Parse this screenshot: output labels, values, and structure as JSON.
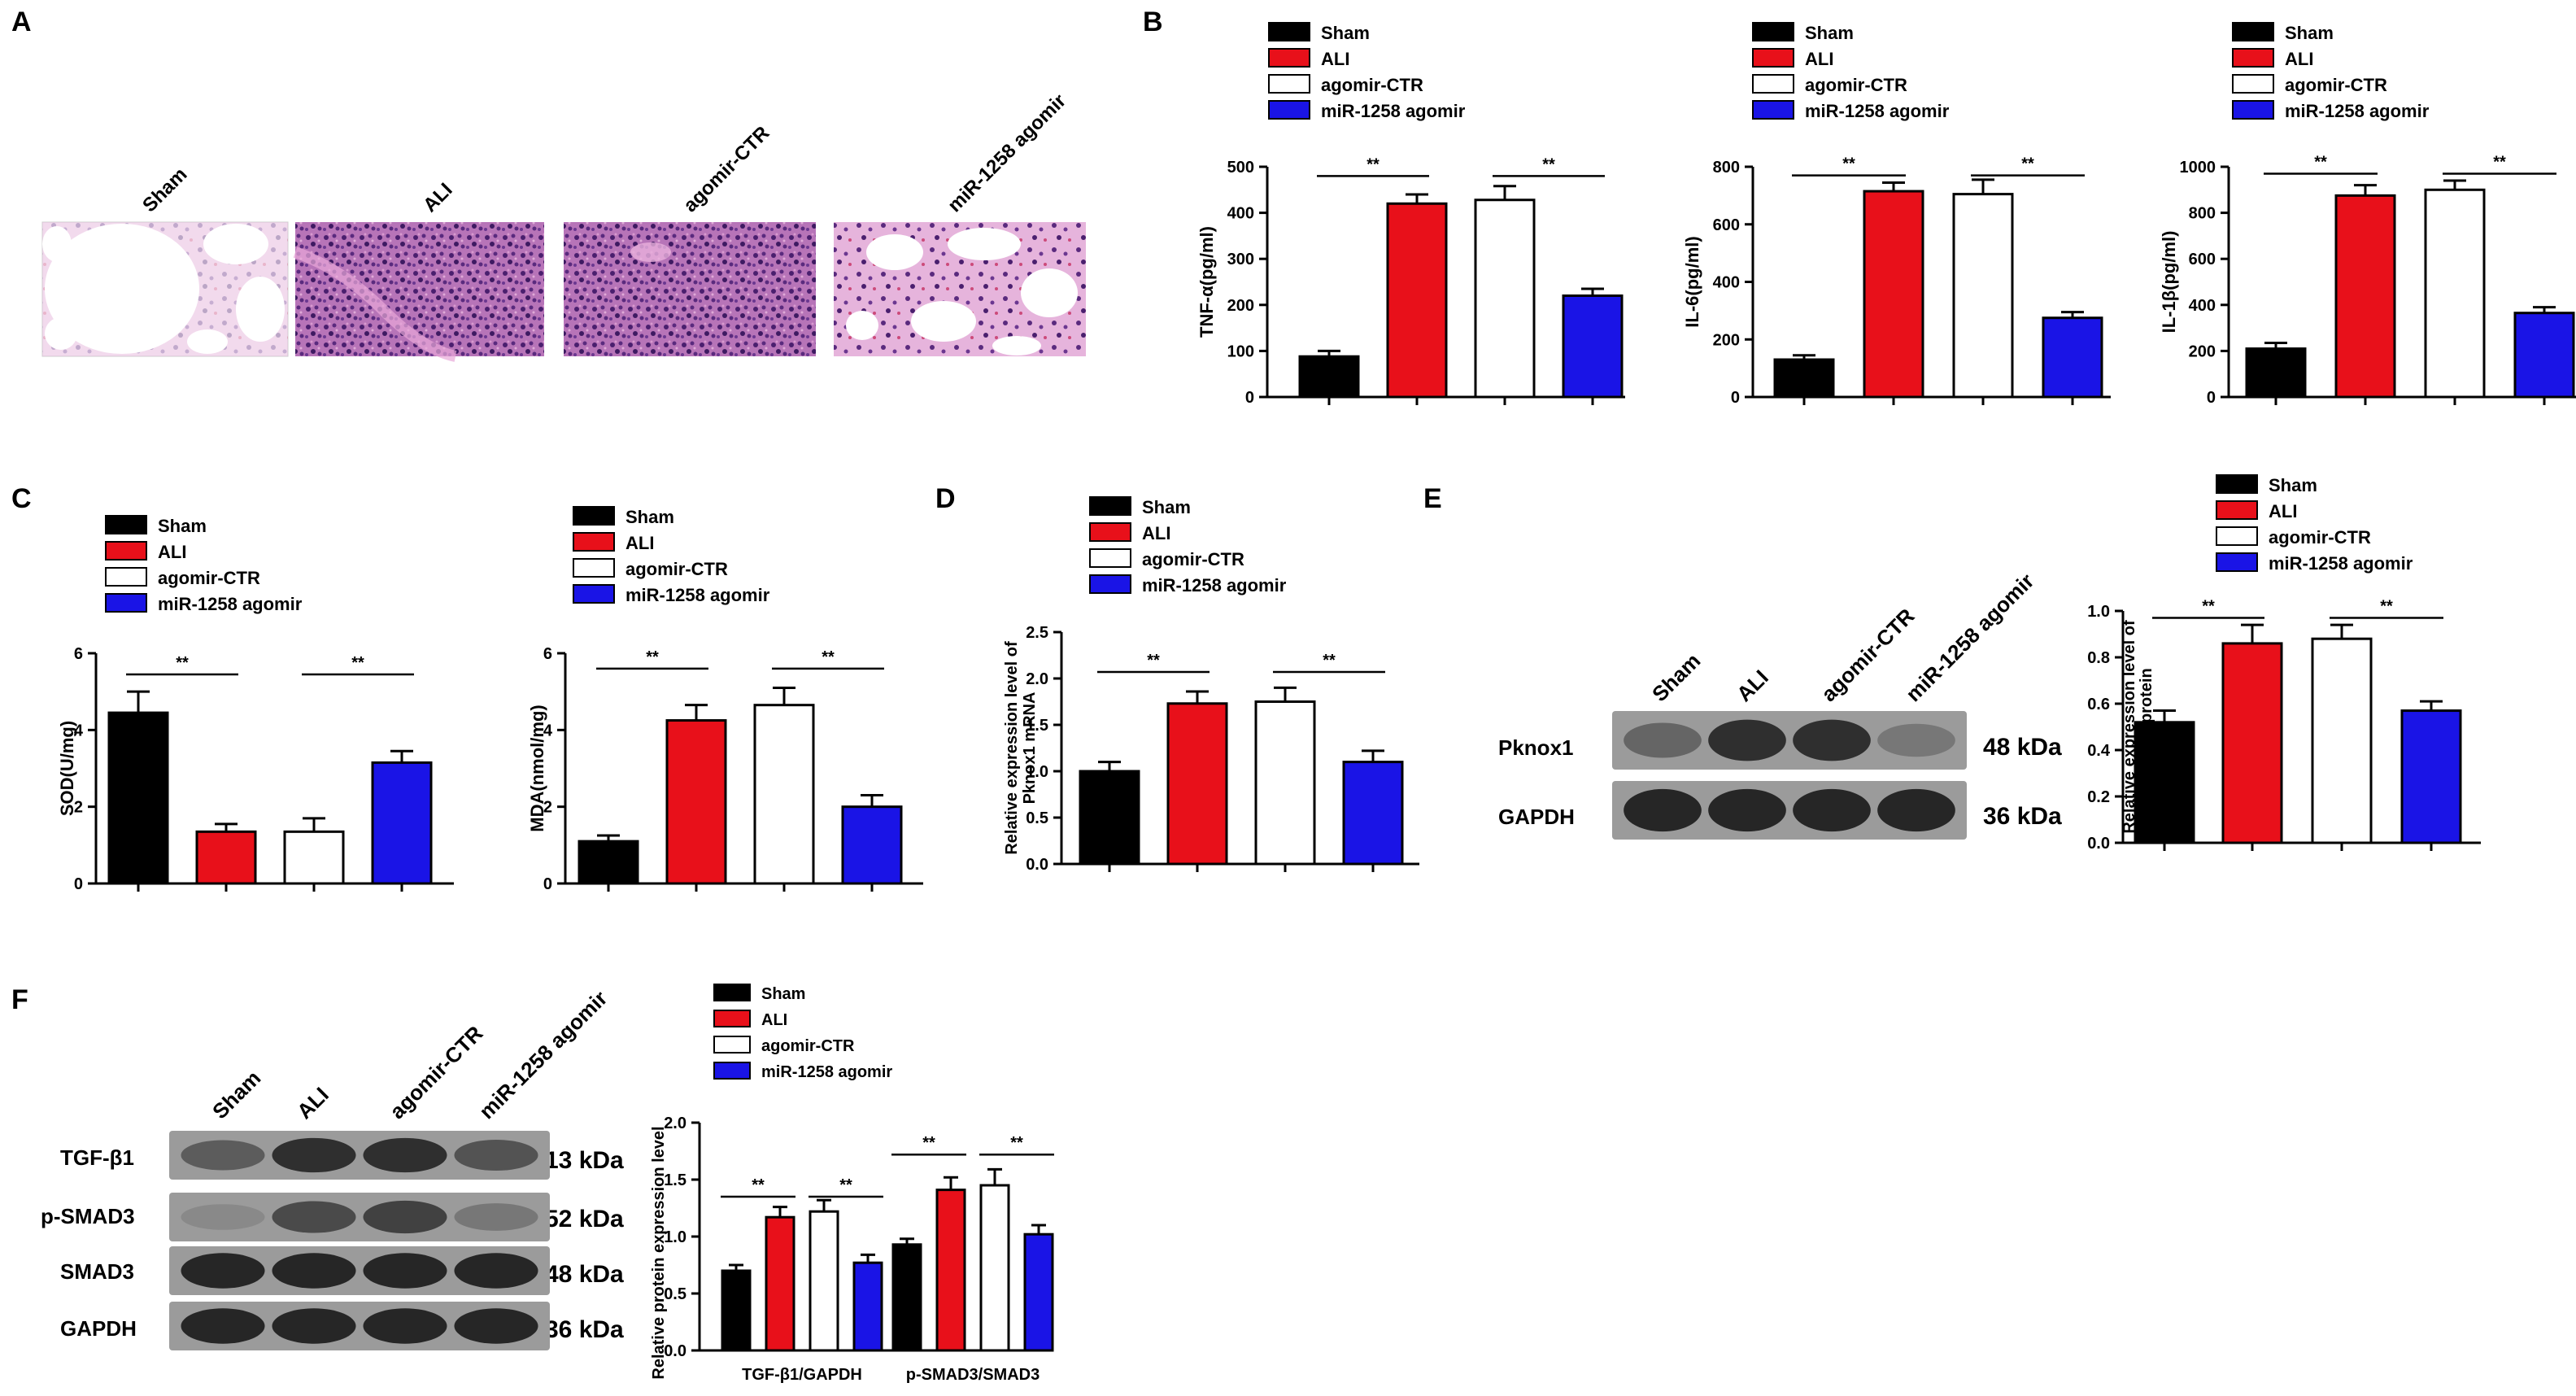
{
  "colors": {
    "Sham": "#000000",
    "ALI": "#e8101a",
    "agomir-CTR": "#ffffff",
    "miR-1258 agomir": "#1a14e6",
    "axis": "#000000",
    "histology_pink": "#d8a8d8",
    "histology_purple": "#7a3a8a",
    "blot_band": "#222222",
    "blot_bg": "#8a8a8a"
  },
  "panel_labels": [
    "A",
    "B",
    "C",
    "D",
    "E",
    "F"
  ],
  "groups": [
    "Sham",
    "ALI",
    "agomir-CTR",
    "miR-1258 agomir"
  ],
  "significance_mark": "**",
  "panel_A": {
    "image_labels": [
      "Sham",
      "ALI",
      "agomir-CTR",
      "miR-1258 agomir"
    ]
  },
  "panel_E": {
    "lane_labels": [
      "Sham",
      "ALI",
      "agomir-CTR",
      "miR-1258 agomir"
    ],
    "rows": [
      {
        "name": "Pknox1",
        "size": "48 kDa",
        "intensity": [
          0.55,
          0.85,
          0.85,
          0.45
        ]
      },
      {
        "name": "GAPDH",
        "size": "36 kDa",
        "intensity": [
          0.9,
          0.9,
          0.9,
          0.9
        ]
      }
    ]
  },
  "panel_F": {
    "lane_labels": [
      "Sham",
      "ALI",
      "agomir-CTR",
      "miR-1258 agomir"
    ],
    "rows": [
      {
        "name": "TGF-β1",
        "size": "13 kDa",
        "intensity": [
          0.6,
          0.85,
          0.85,
          0.65
        ]
      },
      {
        "name": "p-SMAD3",
        "size": "52 kDa",
        "intensity": [
          0.35,
          0.7,
          0.75,
          0.45
        ]
      },
      {
        "name": "SMAD3",
        "size": "48 kDa",
        "intensity": [
          0.9,
          0.9,
          0.9,
          0.9
        ]
      },
      {
        "name": "GAPDH",
        "size": "36 kDa",
        "intensity": [
          0.9,
          0.9,
          0.9,
          0.9
        ]
      }
    ]
  },
  "chart_data": [
    {
      "id": "B1",
      "type": "bar",
      "categories": [
        "Sham",
        "ALI",
        "agomir-CTR",
        "miR-1258 agomir"
      ],
      "values": [
        88,
        420,
        428,
        220
      ],
      "errors": [
        12,
        20,
        30,
        15
      ],
      "ylabel": "TNF-α(pg/ml)",
      "ylim": [
        0,
        500
      ],
      "yticks": [
        0,
        100,
        200,
        300,
        400,
        500
      ],
      "significance": [
        {
          "a": 0,
          "b": 1,
          "label": "**",
          "y": 480
        },
        {
          "a": 2,
          "b": 3,
          "label": "**",
          "y": 480
        }
      ],
      "legend": "top"
    },
    {
      "id": "B2",
      "type": "bar",
      "categories": [
        "Sham",
        "ALI",
        "agomir-CTR",
        "miR-1258 agomir"
      ],
      "values": [
        130,
        715,
        705,
        275
      ],
      "errors": [
        15,
        30,
        50,
        20
      ],
      "ylabel": "IL-6(pg/ml)",
      "ylim": [
        0,
        800
      ],
      "yticks": [
        0,
        200,
        400,
        600,
        800
      ],
      "significance": [
        {
          "a": 0,
          "b": 1,
          "label": "**",
          "y": 770
        },
        {
          "a": 2,
          "b": 3,
          "label": "**",
          "y": 770
        }
      ],
      "legend": "top"
    },
    {
      "id": "B3",
      "type": "bar",
      "categories": [
        "Sham",
        "ALI",
        "agomir-CTR",
        "miR-1258 agomir"
      ],
      "values": [
        210,
        875,
        900,
        365
      ],
      "errors": [
        25,
        45,
        40,
        25
      ],
      "ylabel": "IL-1β(pg/ml)",
      "ylim": [
        0,
        1000
      ],
      "yticks": [
        0,
        200,
        400,
        600,
        800,
        1000
      ],
      "significance": [
        {
          "a": 0,
          "b": 1,
          "label": "**",
          "y": 970
        },
        {
          "a": 2,
          "b": 3,
          "label": "**",
          "y": 970
        }
      ],
      "legend": "top"
    },
    {
      "id": "C1",
      "type": "bar",
      "categories": [
        "Sham",
        "ALI",
        "agomir-CTR",
        "miR-1258 agomir"
      ],
      "values": [
        4.45,
        1.35,
        1.35,
        3.15
      ],
      "errors": [
        0.55,
        0.2,
        0.35,
        0.3
      ],
      "ylabel": "SOD(U/mg)",
      "ylim": [
        0,
        6
      ],
      "yticks": [
        0,
        2,
        4,
        6
      ],
      "significance": [
        {
          "a": 0,
          "b": 1,
          "label": "**",
          "y": 5.45
        },
        {
          "a": 2,
          "b": 3,
          "label": "**",
          "y": 5.45
        }
      ],
      "legend": "top"
    },
    {
      "id": "C2",
      "type": "bar",
      "categories": [
        "Sham",
        "ALI",
        "agomir-CTR",
        "miR-1258 agomir"
      ],
      "values": [
        1.1,
        4.25,
        4.65,
        2.0
      ],
      "errors": [
        0.15,
        0.4,
        0.45,
        0.3
      ],
      "ylabel": "MDA(nmol/mg)",
      "ylim": [
        0,
        6
      ],
      "yticks": [
        0,
        2,
        4,
        6
      ],
      "significance": [
        {
          "a": 0,
          "b": 1,
          "label": "**",
          "y": 5.6
        },
        {
          "a": 2,
          "b": 3,
          "label": "**",
          "y": 5.6
        }
      ],
      "legend": "top"
    },
    {
      "id": "D",
      "type": "bar",
      "categories": [
        "Sham",
        "ALI",
        "agomir-CTR",
        "miR-1258 agomir"
      ],
      "values": [
        1.0,
        1.73,
        1.75,
        1.1
      ],
      "errors": [
        0.1,
        0.13,
        0.15,
        0.12
      ],
      "ylabel": "Relative expression level of Pknox1 mRNA",
      "ylim": [
        0,
        2.5
      ],
      "yticks": [
        0.0,
        0.5,
        1.0,
        1.5,
        2.0,
        2.5
      ],
      "significance": [
        {
          "a": 0,
          "b": 1,
          "label": "**",
          "y": 2.07
        },
        {
          "a": 2,
          "b": 3,
          "label": "**",
          "y": 2.07
        }
      ],
      "legend": "top"
    },
    {
      "id": "E",
      "type": "bar",
      "categories": [
        "Sham",
        "ALI",
        "agomir-CTR",
        "miR-1258 agomir"
      ],
      "values": [
        0.52,
        0.86,
        0.88,
        0.57
      ],
      "errors": [
        0.05,
        0.08,
        0.06,
        0.04
      ],
      "ylabel": "Relative expression level of Pknox1 protein",
      "ylim": [
        0,
        1.0
      ],
      "yticks": [
        0.0,
        0.2,
        0.4,
        0.6,
        0.8,
        1.0
      ],
      "significance": [
        {
          "a": 0,
          "b": 1,
          "label": "**",
          "y": 0.97
        },
        {
          "a": 2,
          "b": 3,
          "label": "**",
          "y": 0.97
        }
      ],
      "legend": "top"
    },
    {
      "id": "F",
      "type": "bar",
      "categories": [
        "TGF-β1/GAPDH",
        "p-SMAD3/SMAD3"
      ],
      "series": [
        {
          "name": "Sham",
          "values": [
            0.7,
            0.93
          ],
          "errors": [
            0.05,
            0.05
          ]
        },
        {
          "name": "ALI",
          "values": [
            1.17,
            1.41
          ],
          "errors": [
            0.09,
            0.11
          ]
        },
        {
          "name": "agomir-CTR",
          "values": [
            1.22,
            1.45
          ],
          "errors": [
            0.1,
            0.14
          ]
        },
        {
          "name": "miR-1258 agomir",
          "values": [
            0.77,
            1.02
          ],
          "errors": [
            0.07,
            0.08
          ]
        }
      ],
      "ylabel": "Relative protein expression level",
      "ylim": [
        0,
        2.0
      ],
      "yticks": [
        0.0,
        0.5,
        1.0,
        1.5,
        2.0
      ],
      "significance": [
        {
          "group": 0,
          "a": 0,
          "b": 1,
          "label": "**",
          "y": 1.35
        },
        {
          "group": 0,
          "a": 2,
          "b": 3,
          "label": "**",
          "y": 1.35
        },
        {
          "group": 1,
          "a": 0,
          "b": 1,
          "label": "**",
          "y": 1.72
        },
        {
          "group": 1,
          "a": 2,
          "b": 3,
          "label": "**",
          "y": 1.72
        }
      ],
      "legend": "top"
    }
  ]
}
